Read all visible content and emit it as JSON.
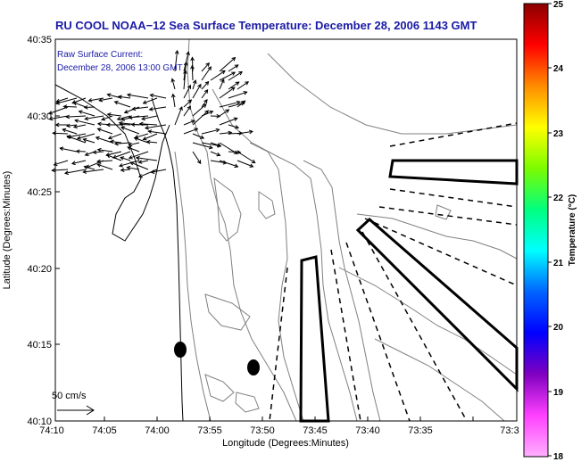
{
  "title": "RU COOL  NOAA−12  Sea Surface Temperature:  December 28, 2006 1143 GMT",
  "legend": {
    "line1": "Raw Surface Current:",
    "line2": "December 28, 2006 13:00 GMT"
  },
  "scale_label": "50 cm/s",
  "x_axis": {
    "label": "Longitude (Degrees:Minutes)",
    "ticks": [
      "74:10",
      "74:05",
      "74:00",
      "73:55",
      "73:50",
      "73:45",
      "73:40",
      "73:35",
      "73:3"
    ]
  },
  "y_axis": {
    "label": "Latitude (Degrees:Minutes)",
    "ticks": [
      "40:35",
      "40:30",
      "40:25",
      "40:20",
      "40:15",
      "40:10"
    ]
  },
  "colorbar": {
    "label": "Temperature (°C)",
    "ticks": [
      "25",
      "24",
      "23",
      "22",
      "21",
      "20",
      "19",
      "18"
    ],
    "colors": [
      "#8b0000",
      "#ff0000",
      "#ff8c00",
      "#ffff00",
      "#7cfc00",
      "#00ff7f",
      "#00ffff",
      "#0064ff",
      "#0000ff",
      "#8000c0",
      "#ff40ff",
      "#ffb0ff"
    ]
  },
  "colors": {
    "title": "#1a1aa6",
    "contour": "#808080",
    "vector": "#000000",
    "frame": "#000000"
  }
}
